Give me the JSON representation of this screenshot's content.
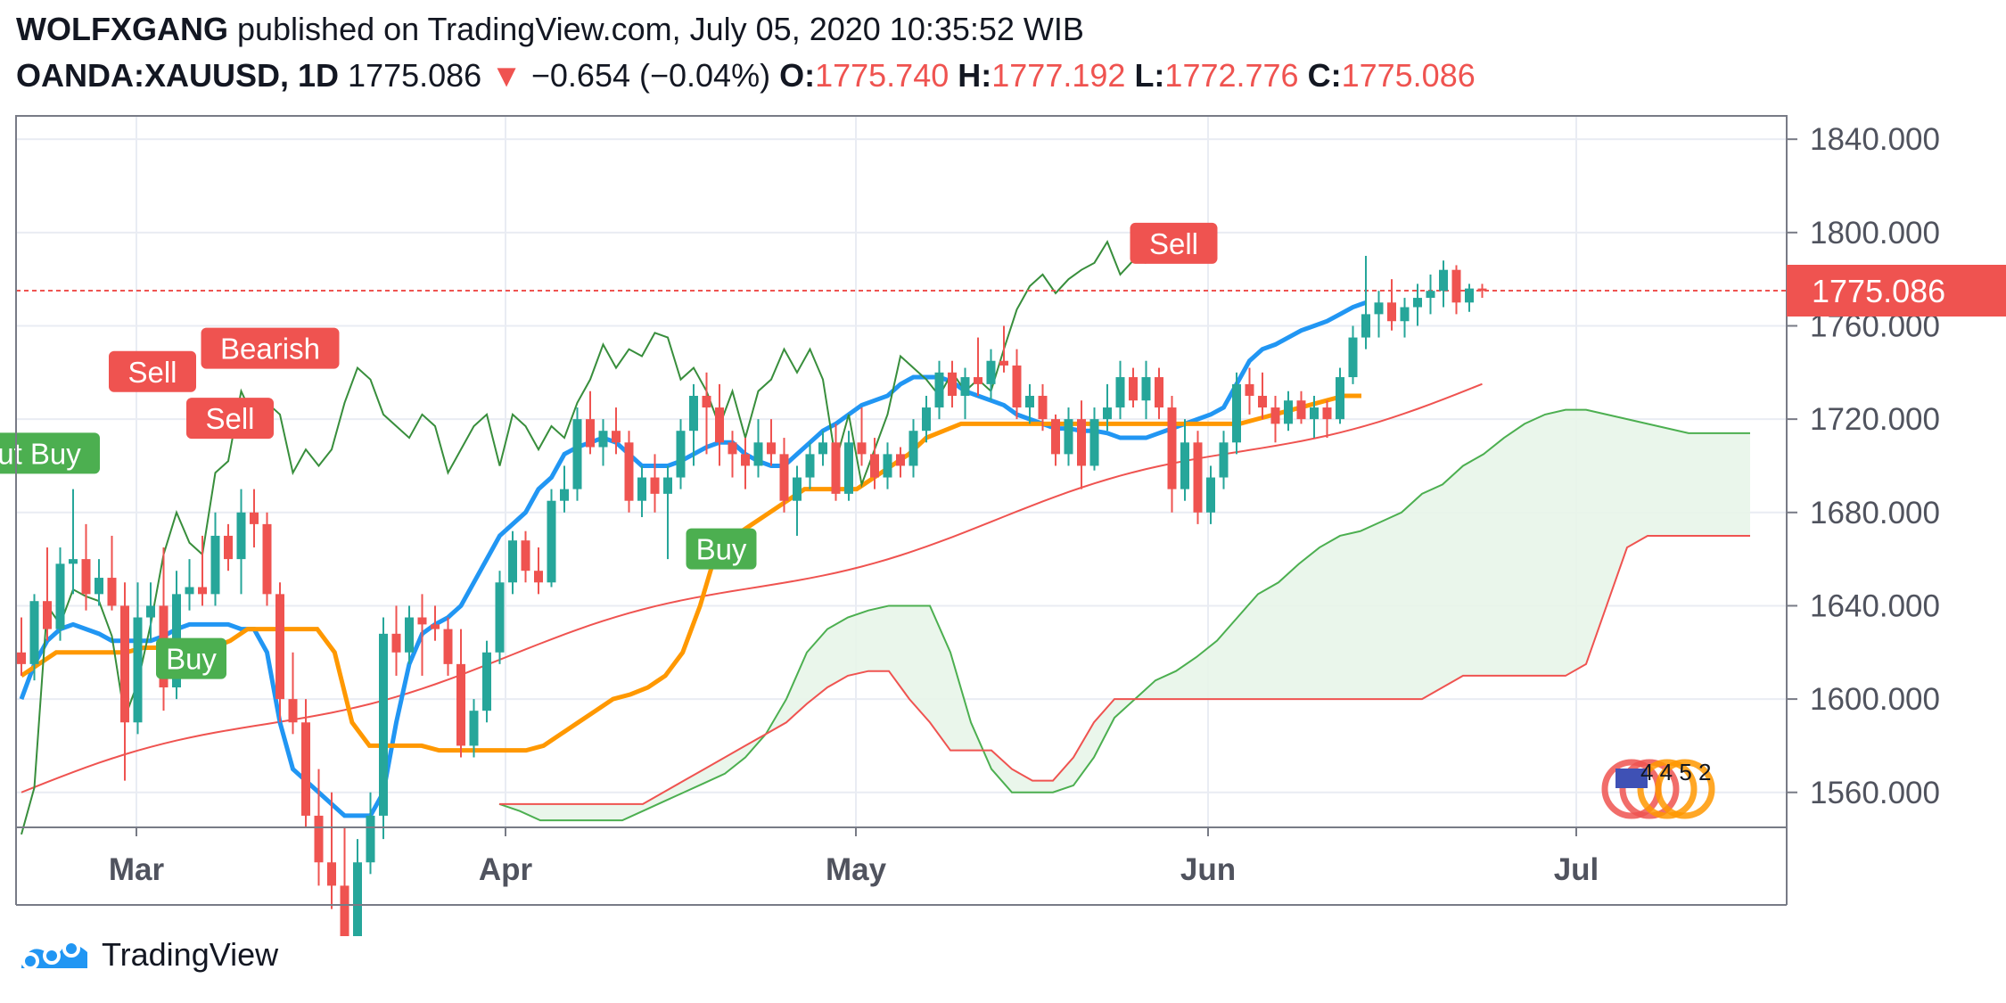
{
  "header": {
    "author": "WOLFXGANG",
    "published_text": " published on TradingView.com, July 05, 2020 10:35:52 WIB",
    "symbol": "OANDA:XAUUSD, 1D",
    "last": "1775.086",
    "arrow": "▼",
    "change": "−0.654 (−0.04%)",
    "o_label": "O:",
    "o_value": "1775.740",
    "h_label": "H:",
    "h_value": "1777.192",
    "l_label": "L:",
    "l_value": "1772.776",
    "c_label": "C:",
    "c_value": "1775.086"
  },
  "footer": {
    "brand": "TradingView",
    "logo_icon": "tradingview-logo-icon"
  },
  "colors": {
    "up": "#26a69a",
    "down": "#ef5350",
    "signal_up": "#00e676",
    "tenkan": "#2196f3",
    "kijun": "#ff9800",
    "span_a": "#4caf50",
    "span_b": "#ef5350",
    "chikou": "#388e3c",
    "cloud": "#e8f5e9",
    "buy_label": "#4caf50",
    "sell_label": "#ef5350"
  },
  "chart_data": {
    "type": "candlestick",
    "y_ticks": [
      "1840.000",
      "1800.000",
      "1760.000",
      "1720.000",
      "1680.000",
      "1640.000",
      "1600.000",
      "1560.000"
    ],
    "x_ticks": [
      "Mar",
      "Apr",
      "May",
      "Jun",
      "Jul"
    ],
    "ylim": [
      1545,
      1850
    ],
    "last_price_label": "1775.086",
    "last_price": 1775.086,
    "grid": true,
    "candles": [
      {
        "o": 1620,
        "h": 1635,
        "l": 1610,
        "c": 1615
      },
      {
        "o": 1615,
        "h": 1645,
        "l": 1608,
        "c": 1642
      },
      {
        "o": 1642,
        "h": 1665,
        "l": 1625,
        "c": 1630
      },
      {
        "o": 1630,
        "h": 1665,
        "l": 1625,
        "c": 1658
      },
      {
        "o": 1658,
        "h": 1690,
        "l": 1645,
        "c": 1660
      },
      {
        "o": 1660,
        "h": 1675,
        "l": 1638,
        "c": 1645
      },
      {
        "o": 1645,
        "h": 1660,
        "l": 1640,
        "c": 1652
      },
      {
        "o": 1652,
        "h": 1670,
        "l": 1638,
        "c": 1640
      },
      {
        "o": 1640,
        "h": 1650,
        "l": 1565,
        "c": 1590
      },
      {
        "o": 1590,
        "h": 1650,
        "l": 1585,
        "c": 1635
      },
      {
        "o": 1635,
        "h": 1650,
        "l": 1625,
        "c": 1640
      },
      {
        "o": 1640,
        "h": 1665,
        "l": 1595,
        "c": 1605
      },
      {
        "o": 1605,
        "h": 1655,
        "l": 1600,
        "c": 1645
      },
      {
        "o": 1645,
        "h": 1660,
        "l": 1638,
        "c": 1648
      },
      {
        "o": 1648,
        "h": 1670,
        "l": 1640,
        "c": 1645
      },
      {
        "o": 1645,
        "h": 1680,
        "l": 1640,
        "c": 1670
      },
      {
        "o": 1670,
        "h": 1675,
        "l": 1655,
        "c": 1660
      },
      {
        "o": 1660,
        "h": 1690,
        "l": 1645,
        "c": 1680
      },
      {
        "o": 1680,
        "h": 1690,
        "l": 1665,
        "c": 1675
      },
      {
        "o": 1675,
        "h": 1680,
        "l": 1640,
        "c": 1645
      },
      {
        "o": 1645,
        "h": 1650,
        "l": 1590,
        "c": 1600
      },
      {
        "o": 1600,
        "h": 1620,
        "l": 1585,
        "c": 1590
      },
      {
        "o": 1590,
        "h": 1600,
        "l": 1545,
        "c": 1550
      },
      {
        "o": 1550,
        "h": 1570,
        "l": 1520,
        "c": 1530
      },
      {
        "o": 1530,
        "h": 1560,
        "l": 1510,
        "c": 1520
      },
      {
        "o": 1520,
        "h": 1545,
        "l": 1470,
        "c": 1480
      },
      {
        "o": 1480,
        "h": 1540,
        "l": 1470,
        "c": 1530
      },
      {
        "o": 1530,
        "h": 1560,
        "l": 1525,
        "c": 1550
      },
      {
        "o": 1550,
        "h": 1635,
        "l": 1540,
        "c": 1628
      },
      {
        "o": 1628,
        "h": 1640,
        "l": 1610,
        "c": 1620
      },
      {
        "o": 1620,
        "h": 1640,
        "l": 1615,
        "c": 1635
      },
      {
        "o": 1635,
        "h": 1645,
        "l": 1610,
        "c": 1632
      },
      {
        "o": 1632,
        "h": 1640,
        "l": 1625,
        "c": 1630
      },
      {
        "o": 1630,
        "h": 1635,
        "l": 1610,
        "c": 1615
      },
      {
        "o": 1615,
        "h": 1630,
        "l": 1575,
        "c": 1580
      },
      {
        "o": 1580,
        "h": 1600,
        "l": 1575,
        "c": 1595
      },
      {
        "o": 1595,
        "h": 1625,
        "l": 1590,
        "c": 1620
      },
      {
        "o": 1620,
        "h": 1655,
        "l": 1615,
        "c": 1650
      },
      {
        "o": 1650,
        "h": 1672,
        "l": 1645,
        "c": 1668
      },
      {
        "o": 1668,
        "h": 1672,
        "l": 1650,
        "c": 1655
      },
      {
        "o": 1655,
        "h": 1665,
        "l": 1645,
        "c": 1650
      },
      {
        "o": 1650,
        "h": 1690,
        "l": 1648,
        "c": 1685
      },
      {
        "o": 1685,
        "h": 1700,
        "l": 1680,
        "c": 1690
      },
      {
        "o": 1690,
        "h": 1725,
        "l": 1685,
        "c": 1720
      },
      {
        "o": 1720,
        "h": 1732,
        "l": 1705,
        "c": 1708
      },
      {
        "o": 1708,
        "h": 1720,
        "l": 1700,
        "c": 1715
      },
      {
        "o": 1715,
        "h": 1725,
        "l": 1705,
        "c": 1710
      },
      {
        "o": 1710,
        "h": 1715,
        "l": 1680,
        "c": 1685
      },
      {
        "o": 1685,
        "h": 1700,
        "l": 1678,
        "c": 1695
      },
      {
        "o": 1695,
        "h": 1705,
        "l": 1680,
        "c": 1688
      },
      {
        "o": 1688,
        "h": 1700,
        "l": 1660,
        "c": 1695
      },
      {
        "o": 1695,
        "h": 1720,
        "l": 1690,
        "c": 1715
      },
      {
        "o": 1715,
        "h": 1735,
        "l": 1700,
        "c": 1730
      },
      {
        "o": 1730,
        "h": 1740,
        "l": 1705,
        "c": 1725
      },
      {
        "o": 1725,
        "h": 1735,
        "l": 1700,
        "c": 1710
      },
      {
        "o": 1710,
        "h": 1715,
        "l": 1695,
        "c": 1705
      },
      {
        "o": 1705,
        "h": 1712,
        "l": 1690,
        "c": 1700
      },
      {
        "o": 1700,
        "h": 1720,
        "l": 1695,
        "c": 1710
      },
      {
        "o": 1710,
        "h": 1720,
        "l": 1700,
        "c": 1705
      },
      {
        "o": 1705,
        "h": 1712,
        "l": 1680,
        "c": 1685
      },
      {
        "o": 1685,
        "h": 1700,
        "l": 1670,
        "c": 1695
      },
      {
        "o": 1695,
        "h": 1710,
        "l": 1690,
        "c": 1705
      },
      {
        "o": 1705,
        "h": 1715,
        "l": 1700,
        "c": 1710
      },
      {
        "o": 1710,
        "h": 1718,
        "l": 1685,
        "c": 1688
      },
      {
        "o": 1688,
        "h": 1715,
        "l": 1685,
        "c": 1710
      },
      {
        "o": 1710,
        "h": 1725,
        "l": 1700,
        "c": 1705
      },
      {
        "o": 1705,
        "h": 1712,
        "l": 1690,
        "c": 1695
      },
      {
        "o": 1695,
        "h": 1710,
        "l": 1690,
        "c": 1705
      },
      {
        "o": 1705,
        "h": 1708,
        "l": 1695,
        "c": 1700
      },
      {
        "o": 1700,
        "h": 1720,
        "l": 1695,
        "c": 1715
      },
      {
        "o": 1715,
        "h": 1730,
        "l": 1710,
        "c": 1725
      },
      {
        "o": 1725,
        "h": 1745,
        "l": 1720,
        "c": 1740
      },
      {
        "o": 1740,
        "h": 1745,
        "l": 1725,
        "c": 1730
      },
      {
        "o": 1730,
        "h": 1742,
        "l": 1720,
        "c": 1738
      },
      {
        "o": 1738,
        "h": 1755,
        "l": 1730,
        "c": 1735
      },
      {
        "o": 1735,
        "h": 1750,
        "l": 1728,
        "c": 1745
      },
      {
        "o": 1745,
        "h": 1760,
        "l": 1740,
        "c": 1743
      },
      {
        "o": 1743,
        "h": 1750,
        "l": 1720,
        "c": 1725
      },
      {
        "o": 1725,
        "h": 1735,
        "l": 1718,
        "c": 1730
      },
      {
        "o": 1730,
        "h": 1735,
        "l": 1715,
        "c": 1720
      },
      {
        "o": 1720,
        "h": 1722,
        "l": 1700,
        "c": 1705
      },
      {
        "o": 1705,
        "h": 1725,
        "l": 1700,
        "c": 1720
      },
      {
        "o": 1720,
        "h": 1728,
        "l": 1690,
        "c": 1700
      },
      {
        "o": 1700,
        "h": 1725,
        "l": 1698,
        "c": 1720
      },
      {
        "o": 1720,
        "h": 1735,
        "l": 1715,
        "c": 1725
      },
      {
        "o": 1725,
        "h": 1745,
        "l": 1720,
        "c": 1738
      },
      {
        "o": 1738,
        "h": 1742,
        "l": 1725,
        "c": 1728
      },
      {
        "o": 1728,
        "h": 1745,
        "l": 1720,
        "c": 1738
      },
      {
        "o": 1738,
        "h": 1742,
        "l": 1720,
        "c": 1725
      },
      {
        "o": 1725,
        "h": 1730,
        "l": 1680,
        "c": 1690
      },
      {
        "o": 1690,
        "h": 1720,
        "l": 1685,
        "c": 1710
      },
      {
        "o": 1710,
        "h": 1715,
        "l": 1675,
        "c": 1680
      },
      {
        "o": 1680,
        "h": 1700,
        "l": 1675,
        "c": 1695
      },
      {
        "o": 1695,
        "h": 1715,
        "l": 1690,
        "c": 1710
      },
      {
        "o": 1710,
        "h": 1740,
        "l": 1705,
        "c": 1735
      },
      {
        "o": 1735,
        "h": 1742,
        "l": 1722,
        "c": 1730
      },
      {
        "o": 1730,
        "h": 1740,
        "l": 1720,
        "c": 1725
      },
      {
        "o": 1725,
        "h": 1730,
        "l": 1710,
        "c": 1718
      },
      {
        "o": 1718,
        "h": 1732,
        "l": 1715,
        "c": 1728
      },
      {
        "o": 1728,
        "h": 1732,
        "l": 1718,
        "c": 1720
      },
      {
        "o": 1720,
        "h": 1730,
        "l": 1712,
        "c": 1725
      },
      {
        "o": 1725,
        "h": 1728,
        "l": 1712,
        "c": 1720
      },
      {
        "o": 1720,
        "h": 1742,
        "l": 1718,
        "c": 1738
      },
      {
        "o": 1738,
        "h": 1760,
        "l": 1735,
        "c": 1755
      },
      {
        "o": 1755,
        "h": 1790,
        "l": 1750,
        "c": 1765
      },
      {
        "o": 1765,
        "h": 1775,
        "l": 1755,
        "c": 1770
      },
      {
        "o": 1770,
        "h": 1780,
        "l": 1758,
        "c": 1762
      },
      {
        "o": 1762,
        "h": 1772,
        "l": 1755,
        "c": 1768
      },
      {
        "o": 1768,
        "h": 1778,
        "l": 1760,
        "c": 1772
      },
      {
        "o": 1772,
        "h": 1782,
        "l": 1765,
        "c": 1775
      },
      {
        "o": 1775,
        "h": 1788,
        "l": 1768,
        "c": 1784
      },
      {
        "o": 1784,
        "h": 1786,
        "l": 1765,
        "c": 1770
      },
      {
        "o": 1770,
        "h": 1778,
        "l": 1766,
        "c": 1776
      },
      {
        "o": 1776,
        "h": 1778,
        "l": 1772,
        "c": 1775
      }
    ],
    "tenkan": [
      1600,
      1615,
      1625,
      1630,
      1632,
      1630,
      1628,
      1625,
      1625,
      1625,
      1625,
      1627,
      1630,
      1632,
      1632,
      1632,
      1632,
      1630,
      1630,
      1620,
      1590,
      1570,
      1565,
      1560,
      1555,
      1550,
      1550,
      1550,
      1560,
      1590,
      1615,
      1628,
      1632,
      1635,
      1640,
      1650,
      1660,
      1670,
      1675,
      1680,
      1690,
      1695,
      1705,
      1708,
      1710,
      1712,
      1710,
      1705,
      1700,
      1700,
      1700,
      1702,
      1705,
      1708,
      1710,
      1710,
      1705,
      1702,
      1700,
      1700,
      1705,
      1710,
      1715,
      1718,
      1722,
      1726,
      1728,
      1730,
      1735,
      1738,
      1738,
      1738,
      1736,
      1732,
      1730,
      1728,
      1726,
      1722,
      1720,
      1718,
      1716,
      1716,
      1715,
      1715,
      1714,
      1712,
      1712,
      1712,
      1714,
      1716,
      1718,
      1720,
      1722,
      1725,
      1735,
      1745,
      1750,
      1752,
      1755,
      1758,
      1760,
      1762,
      1765,
      1768,
      1770
    ],
    "kijun": [
      1610,
      1615,
      1620,
      1620,
      1620,
      1620,
      1620,
      1622,
      1622,
      1622,
      1622,
      1622,
      1625,
      1630,
      1630,
      1630,
      1630,
      1630,
      1620,
      1590,
      1580,
      1580,
      1580,
      1580,
      1578,
      1578,
      1578,
      1578,
      1578,
      1578,
      1580,
      1585,
      1590,
      1595,
      1600,
      1602,
      1605,
      1610,
      1620,
      1640,
      1665,
      1670,
      1675,
      1680,
      1685,
      1690,
      1690,
      1690,
      1690,
      1695,
      1700,
      1705,
      1712,
      1715,
      1718,
      1718,
      1718,
      1718,
      1718,
      1718,
      1718,
      1718,
      1718,
      1718,
      1718,
      1718,
      1718,
      1718,
      1718,
      1718,
      1718,
      1720,
      1722,
      1724,
      1726,
      1728,
      1730,
      1730
    ],
    "markers": [
      {
        "text": "Buy",
        "type": "buy",
        "label": "ut Buy"
      },
      {
        "text": "Sell",
        "type": "sell"
      },
      {
        "text": "Buy",
        "type": "buy"
      },
      {
        "text": "Bearish",
        "type": "sell"
      },
      {
        "text": "Sell",
        "type": "sell"
      },
      {
        "text": "Buy",
        "type": "buy"
      },
      {
        "text": "Sell",
        "type": "sell"
      }
    ],
    "marker_texts": [
      "ut Buy",
      "Sell",
      "Buy",
      "Bearish",
      "Sell",
      "Buy",
      "Sell"
    ],
    "watermark_text": "4 4 5 2"
  }
}
